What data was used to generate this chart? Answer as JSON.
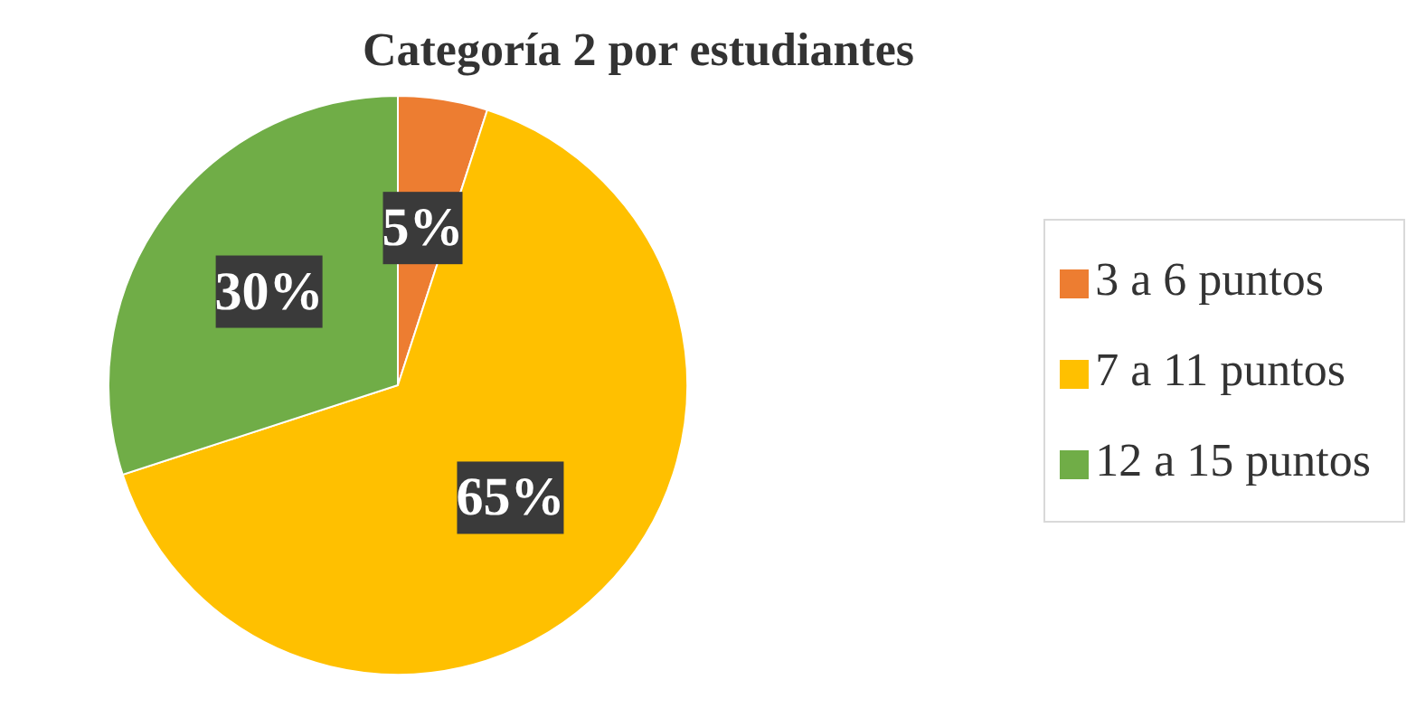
{
  "chart_data": {
    "type": "pie",
    "title": "Categoría 2 por estudiantes",
    "categories": [
      "3 a 6 puntos",
      "7 a 11 puntos",
      "12 a 15 puntos"
    ],
    "values": [
      5,
      65,
      30
    ],
    "colors": [
      "#ed7d31",
      "#ffc000",
      "#70ad47"
    ],
    "value_labels": [
      "5%",
      "65%",
      "30%"
    ],
    "legend": "right"
  }
}
